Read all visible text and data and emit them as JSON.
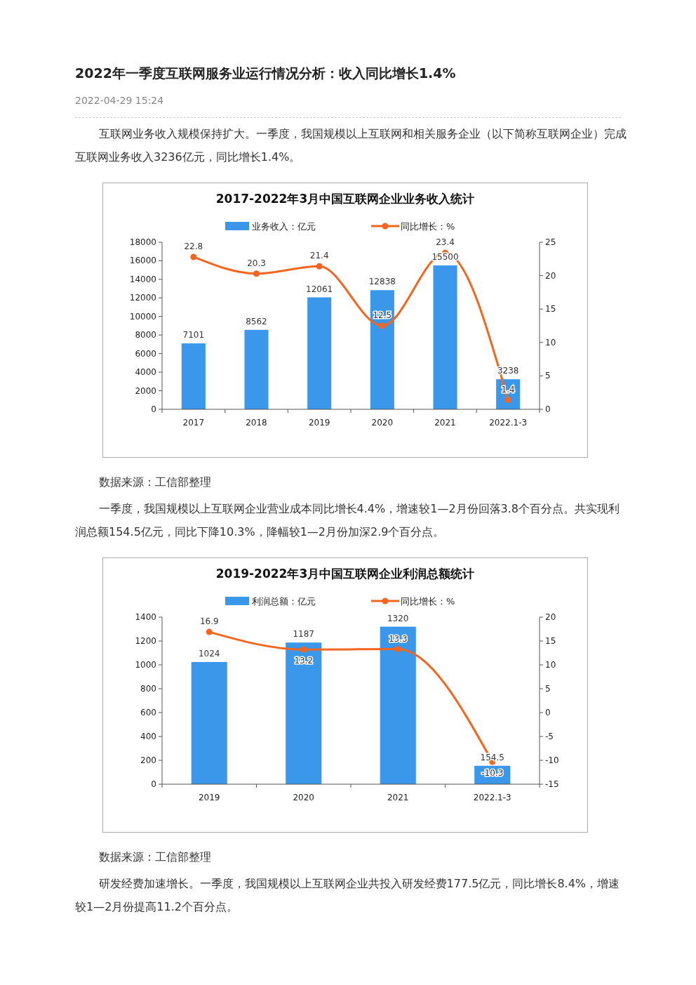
{
  "chart_data": [
    {
      "type": "bar",
      "title": "2017-2022年3月中国互联网企业业务收入统计",
      "annotations": [
        "2022年一季度互联网服务业运行情况分析：收入同比增长1.4%",
        "2022-04-29 15:24",
        "互联网业务收入规模保持扩大。一季度，我国规模以上互联网和相关服务企业（以下简称互联网企业）完成互联网业务收入3236亿元，同比增长1.4%。",
        "数据来源：工信部整理"
      ],
      "categories": [
        "2017",
        "2018",
        "2019",
        "2020",
        "2021",
        "2022.1-3"
      ],
      "series": [
        {
          "name": "业务收入：亿元",
          "color": "#3a97ea",
          "values": [
            7101,
            8562,
            12061,
            12838,
            15500,
            3238
          ]
        },
        {
          "name": "同比增长：%",
          "type": "line",
          "axis": "y2",
          "color": "#f4651f",
          "values": [
            22.8,
            20.3,
            21.4,
            12.5,
            23.4,
            1.4
          ]
        }
      ],
      "ylim": [
        0,
        18000
      ],
      "yticks": [
        0,
        2000,
        4000,
        6000,
        8000,
        10000,
        12000,
        14000,
        16000,
        18000
      ],
      "y2lim": [
        0,
        25
      ],
      "y2ticks": [
        0,
        5,
        10,
        15,
        20,
        25
      ],
      "data_labels": true,
      "legend": "top",
      "marker": "circle",
      "grid": false
    },
    {
      "type": "bar",
      "title": "2019-2022年3月中国互联网企业利润总额统计",
      "annotations": [
        "一季度，我国规模以上互联网企业营业成本同比增长4.4%，增速较1—2月份回落3.8个百分点。共实现利润总额154.5亿元，同比下降10.3%，降幅较1—2月份加深2.9个百分点。",
        "数据来源：工信部整理",
        "研发经费加速增长。一季度，我国规模以上互联网企业共投入研发经费177.5亿元，同比增长8.4%，增速较1—2月份提高11.2个百分点。"
      ],
      "categories": [
        "2019",
        "2020",
        "2021",
        "2022.1-3"
      ],
      "series": [
        {
          "name": "利润总额：亿元",
          "color": "#3a97ea",
          "values": [
            1024,
            1187,
            1320,
            154.5
          ]
        },
        {
          "name": "同比增长：%",
          "type": "line",
          "axis": "y2",
          "color": "#f4651f",
          "values": [
            16.9,
            13.2,
            13.3,
            -10.3
          ]
        }
      ],
      "ylim": [
        0,
        1400
      ],
      "yticks": [
        0,
        200,
        400,
        600,
        800,
        1000,
        1200,
        1400
      ],
      "y2lim": [
        -15,
        20
      ],
      "y2ticks": [
        -15,
        -10,
        -5,
        0,
        5,
        10,
        15,
        20
      ],
      "data_labels": true,
      "legend": "top",
      "marker": "circle",
      "grid": false
    }
  ]
}
